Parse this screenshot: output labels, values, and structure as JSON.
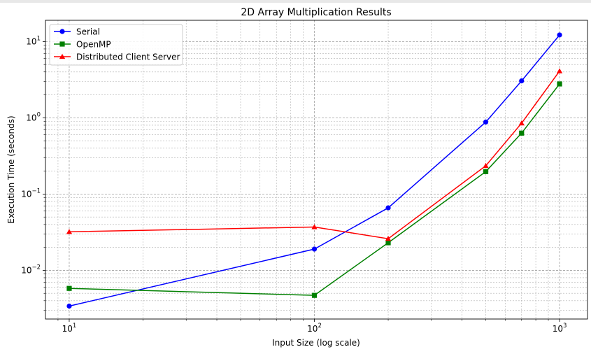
{
  "chart_data": {
    "type": "line",
    "title": "2D Array Multiplication Results",
    "xlabel": "Input Size (log scale)",
    "ylabel": "Execution Time (seconds)",
    "xscale": "log",
    "yscale": "log",
    "xlim": [
      8,
      1300
    ],
    "ylim": [
      0.0023,
      19
    ],
    "grid": true,
    "legend_position": "top-left",
    "x_ticks": [
      {
        "base": "10",
        "exp": "1",
        "value": 10
      },
      {
        "base": "10",
        "exp": "2",
        "value": 100
      },
      {
        "base": "10",
        "exp": "3",
        "value": 1000
      }
    ],
    "y_ticks": [
      {
        "base": "10",
        "exp": "−2",
        "value": 0.01
      },
      {
        "base": "10",
        "exp": "−1",
        "value": 0.1
      },
      {
        "base": "10",
        "exp": "0",
        "value": 1
      },
      {
        "base": "10",
        "exp": "1",
        "value": 10
      }
    ],
    "x": [
      10,
      100,
      200,
      500,
      700,
      1000
    ],
    "series": [
      {
        "name": "Serial",
        "color": "#0000ff",
        "marker": "circle",
        "values": [
          0.0034,
          0.019,
          0.066,
          0.88,
          3.05,
          12.2
        ]
      },
      {
        "name": "OpenMP",
        "color": "#008000",
        "marker": "square",
        "values": [
          0.0058,
          0.0047,
          0.023,
          0.197,
          0.63,
          2.78
        ]
      },
      {
        "name": "Distributed Client Server",
        "color": "#ff0000",
        "marker": "triangle",
        "values": [
          0.032,
          0.037,
          0.026,
          0.235,
          0.85,
          4.1
        ]
      }
    ]
  }
}
